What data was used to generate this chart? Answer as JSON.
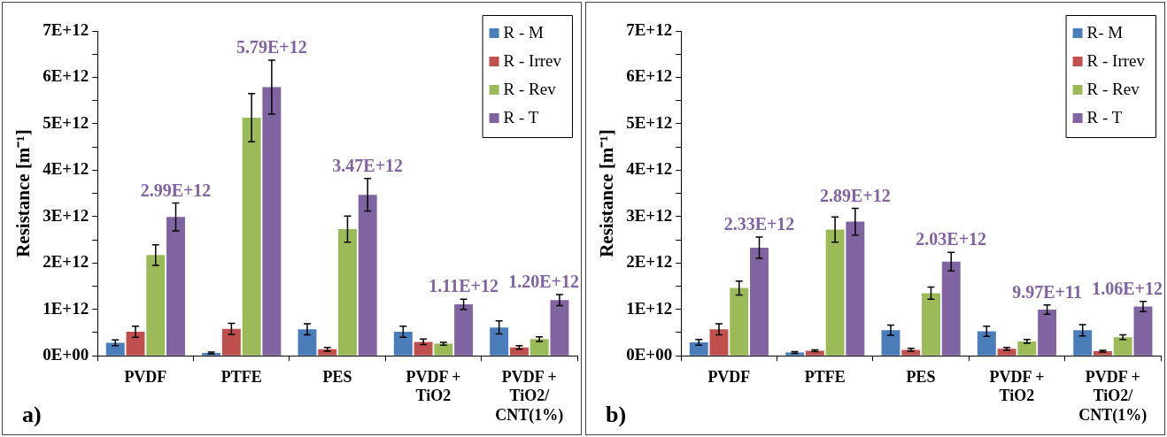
{
  "chart_data": [
    {
      "type": "bar",
      "ylabel": "Resistance [m⁻¹]",
      "categories": [
        "PVDF",
        "PTFE",
        "PES",
        "PVDF + TiO2",
        "PVDF + TiO2/CNT(1%)"
      ],
      "ylim": [
        0,
        7000000000000.0
      ],
      "yticks": [
        {
          "value": 0,
          "label": "0E+00"
        },
        {
          "value": 500000000000.0,
          "label": null
        },
        {
          "value": 1000000000000.0,
          "label": "1E+12"
        },
        {
          "value": 1500000000000.0,
          "label": null
        },
        {
          "value": 2000000000000.0,
          "label": "2E+12"
        },
        {
          "value": 2500000000000.0,
          "label": null
        },
        {
          "value": 3000000000000.0,
          "label": "3E+12"
        },
        {
          "value": 3500000000000.0,
          "label": null
        },
        {
          "value": 4000000000000.0,
          "label": "4E+12"
        },
        {
          "value": 4500000000000.0,
          "label": null
        },
        {
          "value": 5000000000000.0,
          "label": "5E+12"
        },
        {
          "value": 5500000000000.0,
          "label": null
        },
        {
          "value": 6000000000000.0,
          "label": "6E+12"
        },
        {
          "value": 6500000000000.0,
          "label": null
        },
        {
          "value": 7000000000000.0,
          "label": "7E+12"
        }
      ],
      "grid": false,
      "legend": "top right",
      "annotations": [
        "a)"
      ],
      "series": [
        {
          "name": "R - M",
          "color": "#4a7ebb",
          "values": [
            280000000000.0,
            60000000000.0,
            570000000000.0,
            520000000000.0,
            610000000000.0
          ],
          "errors": [
            60000000000.0,
            20000000000.0,
            120000000000.0,
            120000000000.0,
            140000000000.0
          ]
        },
        {
          "name": "R - Irrev",
          "color": "#c0504d",
          "values": [
            520000000000.0,
            580000000000.0,
            140000000000.0,
            300000000000.0,
            180000000000.0
          ],
          "errors": [
            120000000000.0,
            120000000000.0,
            40000000000.0,
            60000000000.0,
            40000000000.0
          ]
        },
        {
          "name": "R - Rev",
          "color": "#9bbb59",
          "values": [
            2170000000000.0,
            5130000000000.0,
            2730000000000.0,
            260000000000.0,
            360000000000.0
          ],
          "errors": [
            220000000000.0,
            520000000000.0,
            280000000000.0,
            30000000000.0,
            50000000000.0
          ]
        },
        {
          "name": "R - T",
          "color": "#8064a2",
          "values": [
            2990000000000.0,
            5790000000000.0,
            3470000000000.0,
            1110000000000.0,
            1200000000000.0
          ],
          "errors": [
            300000000000.0,
            580000000000.0,
            350000000000.0,
            110000000000.0,
            120000000000.0
          ],
          "value_labels": [
            "2.99E+12",
            "5.79E+12",
            "3.47E+12",
            "1.11E+12",
            "1.20E+12"
          ]
        }
      ]
    },
    {
      "type": "bar",
      "ylabel": "Resistance [m⁻¹]",
      "categories": [
        "PVDF",
        "PTFE",
        "PES",
        "PVDF + TiO2",
        "PVDF + TiO2/CNT(1%)"
      ],
      "ylim": [
        0,
        7000000000000.0
      ],
      "yticks": [
        {
          "value": 0,
          "label": "0E+00"
        },
        {
          "value": 500000000000.0,
          "label": null
        },
        {
          "value": 1000000000000.0,
          "label": "1E+12"
        },
        {
          "value": 1500000000000.0,
          "label": null
        },
        {
          "value": 2000000000000.0,
          "label": "2E+12"
        },
        {
          "value": 2500000000000.0,
          "label": null
        },
        {
          "value": 3000000000000.0,
          "label": "3E+12"
        },
        {
          "value": 3500000000000.0,
          "label": null
        },
        {
          "value": 4000000000000.0,
          "label": "4E+12"
        },
        {
          "value": 4500000000000.0,
          "label": null
        },
        {
          "value": 5000000000000.0,
          "label": "5E+12"
        },
        {
          "value": 5500000000000.0,
          "label": null
        },
        {
          "value": 6000000000000.0,
          "label": "6E+12"
        },
        {
          "value": 6500000000000.0,
          "label": null
        },
        {
          "value": 7000000000000.0,
          "label": "7E+12"
        }
      ],
      "grid": false,
      "legend": "top right",
      "annotations": [
        "b)"
      ],
      "series": [
        {
          "name": "R- M",
          "color": "#4a7ebb",
          "values": [
            290000000000.0,
            70000000000.0,
            550000000000.0,
            530000000000.0,
            550000000000.0
          ],
          "errors": [
            60000000000.0,
            20000000000.0,
            110000000000.0,
            110000000000.0,
            120000000000.0
          ]
        },
        {
          "name": "R - Irrev",
          "color": "#c0504d",
          "values": [
            570000000000.0,
            110000000000.0,
            130000000000.0,
            150000000000.0,
            100000000000.0
          ],
          "errors": [
            120000000000.0,
            20000000000.0,
            30000000000.0,
            30000000000.0,
            20000000000.0
          ]
        },
        {
          "name": "R - Rev",
          "color": "#9bbb59",
          "values": [
            1460000000000.0,
            2720000000000.0,
            1350000000000.0,
            310000000000.0,
            400000000000.0
          ],
          "errors": [
            150000000000.0,
            270000000000.0,
            130000000000.0,
            40000000000.0,
            50000000000.0
          ]
        },
        {
          "name": "R - T",
          "color": "#8064a2",
          "values": [
            2330000000000.0,
            2890000000000.0,
            2030000000000.0,
            997000000000.0,
            1060000000000.0
          ],
          "errors": [
            230000000000.0,
            290000000000.0,
            200000000000.0,
            100000000000.0,
            110000000000.0
          ],
          "value_labels": [
            "2.33E+12",
            "2.89E+12",
            "2.03E+12",
            "9.97E+11",
            "1.06E+12"
          ]
        }
      ]
    }
  ]
}
